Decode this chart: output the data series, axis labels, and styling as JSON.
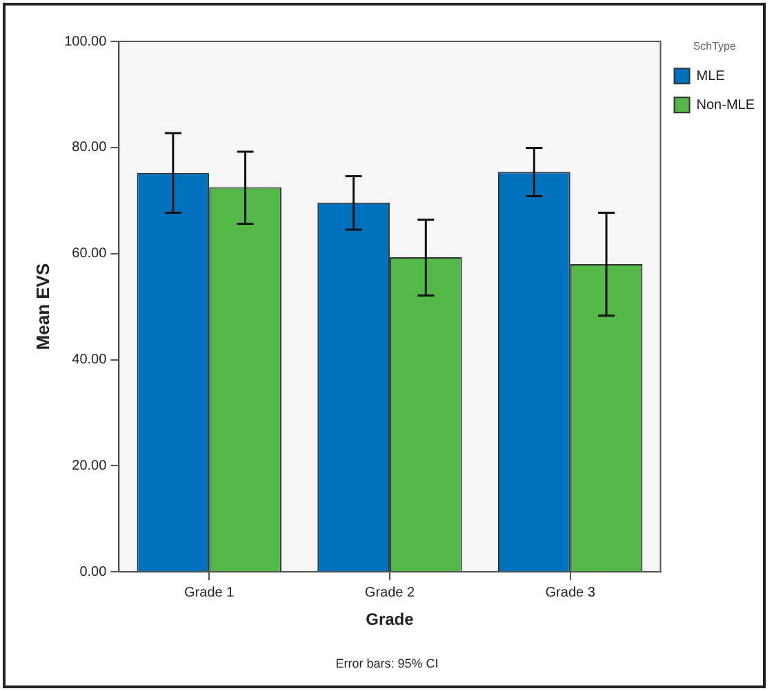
{
  "chart_data": {
    "type": "bar",
    "xlabel": "Grade",
    "ylabel": "Mean EVS",
    "legend_title": "SchType",
    "legend": "top right",
    "grid": false,
    "categories": [
      "Grade 1",
      "Grade 2",
      "Grade 3"
    ],
    "series": [
      {
        "name": "MLE",
        "color": "#0072bd",
        "values": [
          75.2,
          69.6,
          75.4
        ],
        "errors": [
          [
            67.7,
            82.7
          ],
          [
            64.5,
            74.6
          ],
          [
            70.8,
            79.9
          ]
        ]
      },
      {
        "name": "Non-MLE",
        "color": "#53b848",
        "values": [
          72.5,
          59.3,
          58.0
        ],
        "errors": [
          [
            65.6,
            79.2
          ],
          [
            52.1,
            66.4
          ],
          [
            48.3,
            67.7
          ]
        ]
      }
    ],
    "ylim": [
      0,
      100
    ],
    "yticks": [
      {
        "value": 0,
        "label": "0.00"
      },
      {
        "value": 20,
        "label": "20.00"
      },
      {
        "value": 40,
        "label": "40.00"
      },
      {
        "value": 60,
        "label": "60.00"
      },
      {
        "value": 80,
        "label": "80.00"
      },
      {
        "value": 100,
        "label": "100.00"
      }
    ],
    "annotations": [
      "Error bars: 95% CI"
    ]
  }
}
